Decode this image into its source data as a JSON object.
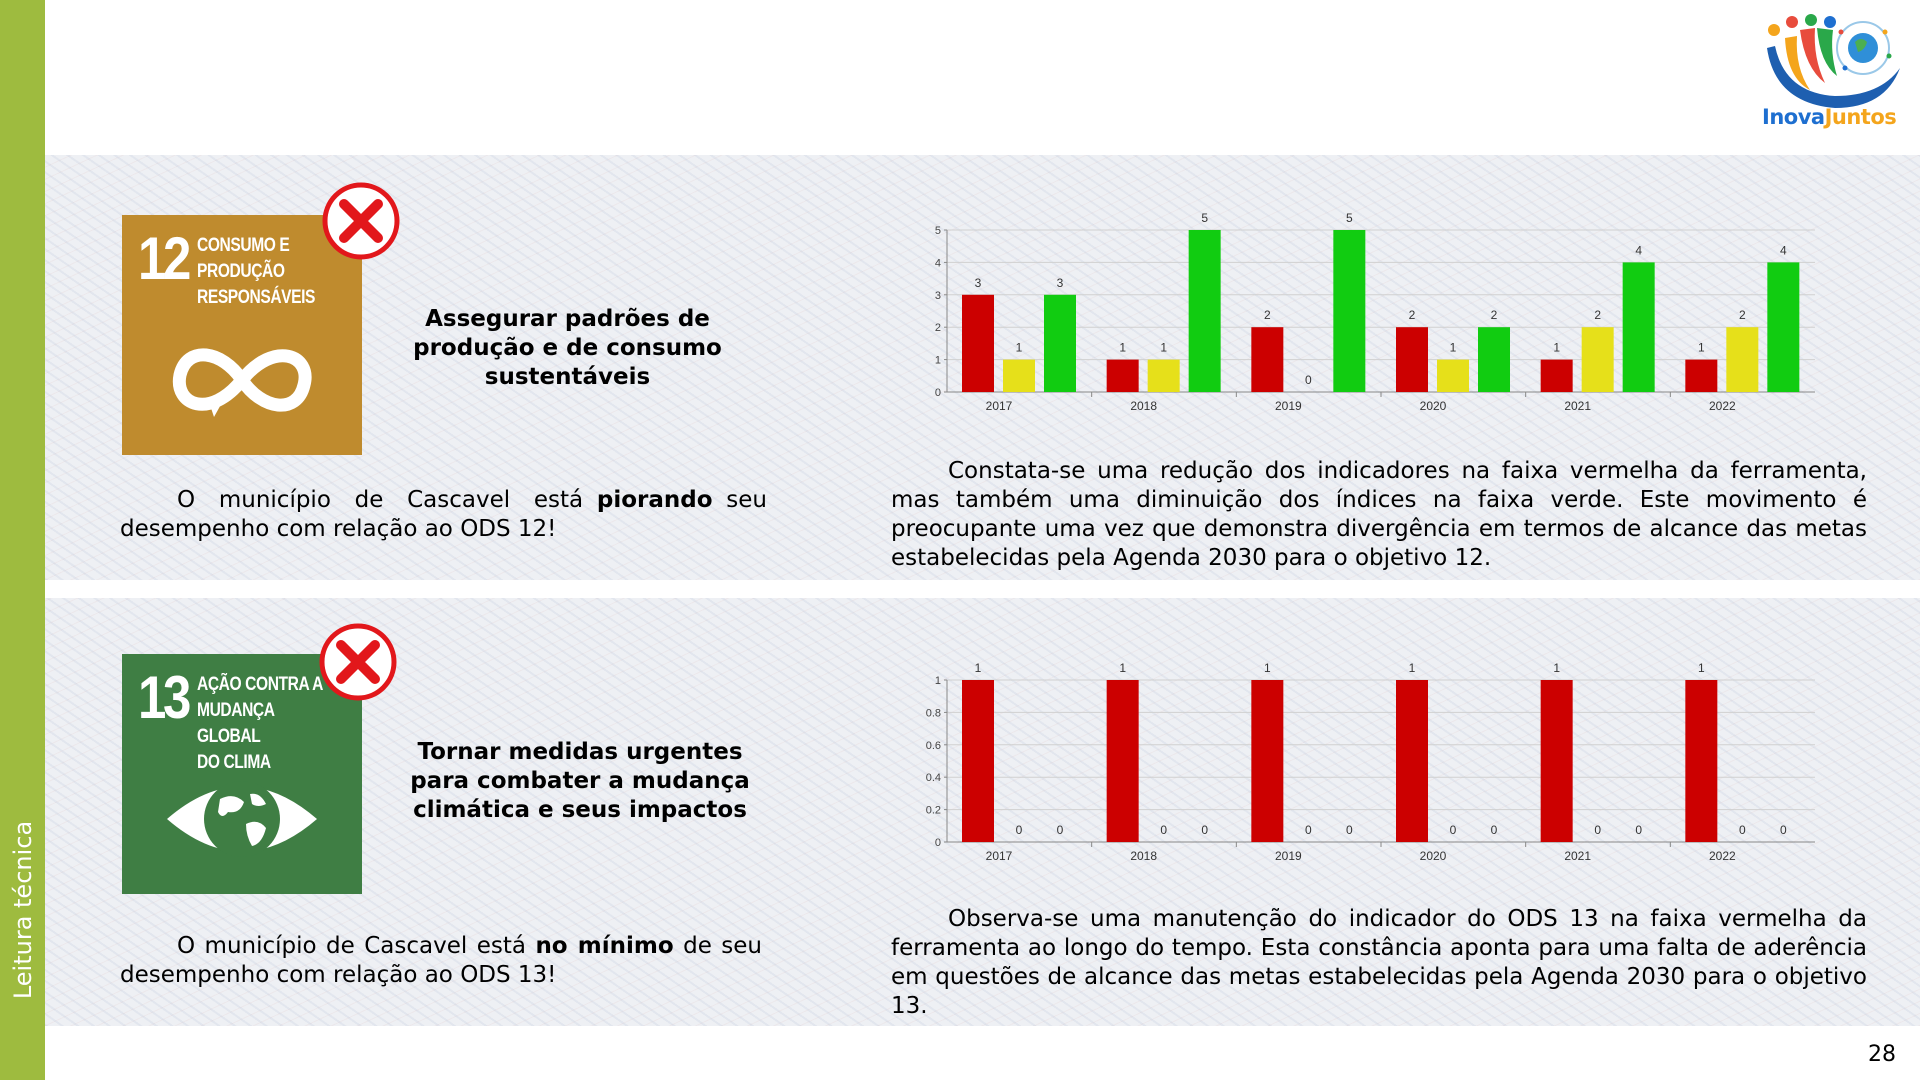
{
  "sidebar": {
    "label": "Leitura técnica"
  },
  "logo": {
    "part1": "Inova",
    "part2": "Juntos"
  },
  "page_number": "28",
  "colors": {
    "red": "#cc0000",
    "yellow": "#e6e01a",
    "green": "#11cc11",
    "sidebar": "#9ebb3f"
  },
  "sdg12": {
    "number": "12",
    "title_lines": [
      "CONSUMO E",
      "PRODUÇÃO",
      "RESPONSÁVEIS"
    ],
    "icon": "infinity-icon",
    "goal_lines": [
      "Assegurar padrões de",
      "produção e de consumo",
      "sustentáveis"
    ],
    "status": {
      "pre": "O município de Cascavel está",
      "highlight": "piorando",
      "post": "seu desempenho com relação ao ODS 12!"
    },
    "description": "Constata-se uma redução dos indicadores na faixa vermelha da ferramenta, mas também uma diminuição dos índices na faixa verde. Este movimento é preocupante uma vez que demonstra divergência em termos de alcance das metas estabelecidas pela Agenda 2030 para o objetivo 12."
  },
  "sdg13": {
    "number": "13",
    "title_lines": [
      "AÇÃO CONTRA A",
      "MUDANÇA GLOBAL",
      "DO CLIMA"
    ],
    "icon": "eye-globe-icon",
    "goal_lines": [
      "Tornar medidas urgentes",
      "para combater a mudança",
      "climática e seus impactos"
    ],
    "status": {
      "pre": "O município de Cascavel está",
      "highlight": "no mínimo",
      "post": "de seu desempenho com relação ao ODS 13!"
    },
    "description": "Observa-se uma manutenção do indicador do ODS 13 na faixa vermelha da ferramenta ao longo do tempo. Esta constância aponta para uma falta de aderência em questões de alcance das metas estabelecidas pela Agenda 2030 para o objetivo 13."
  },
  "chart_data": [
    {
      "type": "bar",
      "categories": [
        "2017",
        "2018",
        "2019",
        "2020",
        "2021",
        "2022"
      ],
      "series": [
        {
          "color": "#cc0000",
          "values": [
            3,
            1,
            2,
            2,
            1,
            1
          ]
        },
        {
          "color": "#e6e01a",
          "values": [
            1,
            1,
            0,
            1,
            2,
            2
          ]
        },
        {
          "color": "#11cc11",
          "values": [
            3,
            5,
            5,
            2,
            4,
            4
          ]
        }
      ],
      "ylim": [
        0,
        5
      ],
      "yticks": [
        "0",
        "1",
        "2",
        "3",
        "4",
        "5"
      ],
      "grid": true
    },
    {
      "type": "bar",
      "categories": [
        "2017",
        "2018",
        "2019",
        "2020",
        "2021",
        "2022"
      ],
      "series": [
        {
          "color": "#cc0000",
          "values": [
            1,
            1,
            1,
            1,
            1,
            1
          ]
        },
        {
          "color": "#e6e01a",
          "values": [
            0,
            0,
            0,
            0,
            0,
            0
          ]
        },
        {
          "color": "#11cc11",
          "values": [
            0,
            0,
            0,
            0,
            0,
            0
          ]
        }
      ],
      "ylim": [
        0,
        1
      ],
      "yticks": [
        "0",
        "0.2",
        "0.4",
        "0.6",
        "0.8",
        "1"
      ],
      "grid": true
    }
  ]
}
